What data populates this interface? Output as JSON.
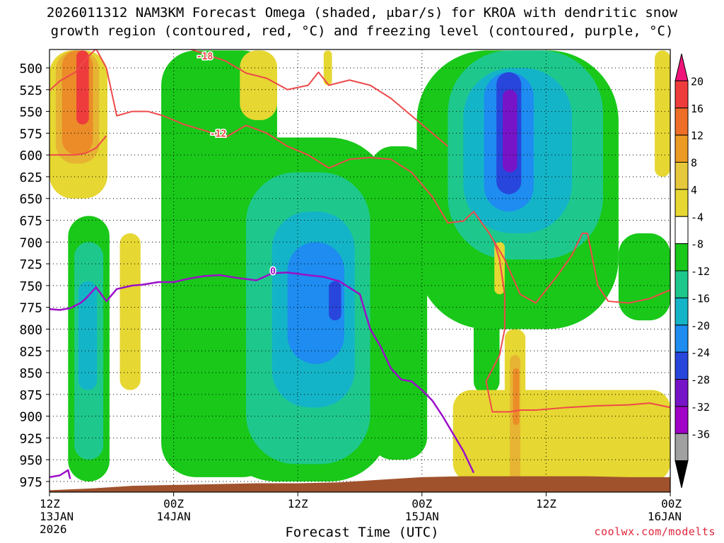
{
  "title": {
    "line1": "2026011312 NAM3KM Forecast Omega (shaded, μbar/s) for KROA with dendritic snow",
    "line2": "growth region (contoured, red, °C) and freezing level (contoured, purple, °C)"
  },
  "xlabel": "Forecast Time (UTC)",
  "credit": "coolwx.com/modelts",
  "chart_data": {
    "type": "heatmap",
    "title": "2026011312 NAM3KM Forecast Omega (shaded, μbar/s) for KROA with dendritic snow growth region (contoured, red, °C) and freezing level (contoured, purple, °C)",
    "xlabel": "Forecast Time (UTC)",
    "ylabel": "",
    "x_unit": "hours since 2026-01-13 12Z",
    "xlim": [
      0,
      60
    ],
    "ylim": [
      990,
      480
    ],
    "y_ticks": [
      500,
      525,
      550,
      575,
      600,
      625,
      650,
      675,
      700,
      725,
      750,
      775,
      800,
      825,
      850,
      875,
      900,
      925,
      950,
      975
    ],
    "x_ticks": [
      {
        "x": 0,
        "lines": [
          "12Z",
          "13JAN",
          "2026"
        ]
      },
      {
        "x": 12,
        "lines": [
          "00Z",
          "14JAN"
        ]
      },
      {
        "x": 24,
        "lines": [
          "12Z",
          ""
        ]
      },
      {
        "x": 36,
        "lines": [
          "00Z",
          "15JAN"
        ]
      },
      {
        "x": 48,
        "lines": [
          "12Z",
          ""
        ]
      },
      {
        "x": 60,
        "lines": [
          "00Z",
          "16JAN"
        ]
      }
    ],
    "grid": true,
    "colorbar": {
      "labels": [
        "20",
        "16",
        "12",
        "8",
        "4",
        "-4",
        "-8",
        "-12",
        "-16",
        "-20",
        "-24",
        "-28",
        "-32",
        "-36"
      ],
      "colors": [
        "#f0147a",
        "#ee3c3c",
        "#ee6e28",
        "#eb9b23",
        "#e6c83c",
        "#e6d732",
        "#ffffff",
        "#19c819",
        "#1ec88c",
        "#14b4c8",
        "#1e8cf0",
        "#2846dc",
        "#7814c8",
        "#a000c8",
        "#a0a0a0",
        "#000000"
      ]
    },
    "omega_colors": {
      "neg4": "#19c819",
      "neg8": "#1ec88c",
      "neg12": "#14b4c8",
      "neg16": "#1e8cf0",
      "neg20": "#2846dc",
      "neg24": "#7814c8",
      "pos4": "#e6d732",
      "pos8": "#e6b432",
      "pos12": "#eb8c28",
      "pos16": "#ee3c3c"
    },
    "omega_features": [
      {
        "level": -4,
        "x": [
          1.8,
          5.8
        ],
        "y": [
          670,
          975
        ],
        "r": 0.5
      },
      {
        "level": -8,
        "x": [
          2.4,
          5.2
        ],
        "y": [
          700,
          950
        ],
        "r": 0.5
      },
      {
        "level": -12,
        "x": [
          2.8,
          4.6
        ],
        "y": [
          745,
          870
        ],
        "r": 0.5
      },
      {
        "level": -4,
        "x": [
          10.8,
          22
        ],
        "y": [
          480,
          970
        ],
        "r": 0.3
      },
      {
        "level": -4,
        "x": [
          16,
          33
        ],
        "y": [
          580,
          975
        ],
        "r": 0.35
      },
      {
        "level": -8,
        "x": [
          19,
          31
        ],
        "y": [
          620,
          955
        ],
        "r": 0.4
      },
      {
        "level": -12,
        "x": [
          21.5,
          29.5
        ],
        "y": [
          665,
          890
        ],
        "r": 0.45
      },
      {
        "level": -16,
        "x": [
          23,
          28.5
        ],
        "y": [
          700,
          840
        ],
        "r": 0.5
      },
      {
        "level": -20,
        "x": [
          27,
          28.2
        ],
        "y": [
          745,
          790
        ],
        "r": 0.5
      },
      {
        "level": -4,
        "x": [
          31,
          36.5
        ],
        "y": [
          590,
          950
        ],
        "r": 0.4
      },
      {
        "level": -4,
        "x": [
          35.5,
          55
        ],
        "y": [
          480,
          800
        ],
        "r": 0.35
      },
      {
        "level": -8,
        "x": [
          38.5,
          53.5
        ],
        "y": [
          480,
          720
        ],
        "r": 0.4
      },
      {
        "level": -12,
        "x": [
          40,
          50.5
        ],
        "y": [
          500,
          690
        ],
        "r": 0.45
      },
      {
        "level": -16,
        "x": [
          42,
          46.8
        ],
        "y": [
          505,
          665
        ],
        "r": 0.5
      },
      {
        "level": -20,
        "x": [
          43.2,
          45.6
        ],
        "y": [
          505,
          645
        ],
        "r": 0.5
      },
      {
        "level": -24,
        "x": [
          43.8,
          45.2
        ],
        "y": [
          525,
          620
        ],
        "r": 0.5
      },
      {
        "level": -4,
        "x": [
          55,
          60
        ],
        "y": [
          690,
          790
        ],
        "r": 0.4
      },
      {
        "level": -4,
        "x": [
          41,
          43.5
        ],
        "y": [
          775,
          875
        ],
        "r": 0.5
      },
      {
        "level": 4,
        "x": [
          0,
          5.6
        ],
        "y": [
          480,
          650
        ],
        "r": 0.4
      },
      {
        "level": 8,
        "x": [
          0.6,
          4.8
        ],
        "y": [
          480,
          610
        ],
        "r": 0.45
      },
      {
        "level": 12,
        "x": [
          1.2,
          4.2
        ],
        "y": [
          480,
          600
        ],
        "r": 0.5
      },
      {
        "level": 16,
        "x": [
          2.6,
          3.8
        ],
        "y": [
          480,
          565
        ],
        "r": 0.5
      },
      {
        "level": 4,
        "x": [
          6.8,
          8.8
        ],
        "y": [
          690,
          870
        ],
        "r": 0.5
      },
      {
        "level": 4,
        "x": [
          18.4,
          22
        ],
        "y": [
          480,
          560
        ],
        "r": 0.45
      },
      {
        "level": 4,
        "x": [
          26.5,
          27.3
        ],
        "y": [
          480,
          520
        ],
        "r": 0.5
      },
      {
        "level": 4,
        "x": [
          39,
          60
        ],
        "y": [
          870,
          975
        ],
        "r": 0.2
      },
      {
        "level": 4,
        "x": [
          44,
          46
        ],
        "y": [
          800,
          975
        ],
        "r": 0.45
      },
      {
        "level": 8,
        "x": [
          44.5,
          45.5
        ],
        "y": [
          830,
          975
        ],
        "r": 0.5
      },
      {
        "level": 12,
        "x": [
          44.8,
          45.4
        ],
        "y": [
          845,
          910
        ],
        "r": 0.5
      },
      {
        "level": 4,
        "x": [
          58.5,
          60
        ],
        "y": [
          480,
          625
        ],
        "r": 0.5
      },
      {
        "level": 4,
        "x": [
          43,
          44
        ],
        "y": [
          700,
          760
        ],
        "r": 0.5
      }
    ],
    "series": [
      {
        "name": "-18",
        "color": "#ee4a4a",
        "width": 2,
        "label_at": [
          15,
          486
        ],
        "x": [
          5.5,
          7,
          9,
          11,
          12,
          13,
          15,
          17,
          19,
          21,
          23,
          25,
          26,
          27,
          29,
          31,
          33,
          35,
          37,
          38.5
        ],
        "y": [
          478,
          470,
          462,
          460,
          466,
          476,
          484,
          492,
          506,
          512,
          525,
          520,
          505,
          520,
          514,
          520,
          535,
          555,
          575,
          590
        ]
      },
      {
        "name": "-12",
        "color": "#ee4a4a",
        "width": 2,
        "label_at": [
          16.3,
          575
        ],
        "x": [
          0,
          1,
          2.5,
          3.5,
          4.5,
          5.5,
          6.5,
          8,
          9.5,
          11,
          13,
          15,
          17,
          19,
          21,
          23,
          25,
          27,
          29,
          31,
          33,
          35,
          37,
          38.5,
          40,
          41,
          42.5,
          44,
          45.5,
          47,
          49,
          50.5,
          51.5,
          52,
          53,
          54,
          56,
          58,
          59,
          60
        ],
        "y": [
          526,
          515,
          505,
          490,
          478,
          500,
          555,
          550,
          550,
          555,
          565,
          572,
          580,
          566,
          575,
          590,
          600,
          615,
          605,
          603,
          605,
          620,
          648,
          678,
          676,
          665,
          690,
          720,
          760,
          770,
          740,
          715,
          690,
          690,
          750,
          768,
          770,
          765,
          760,
          755
        ]
      },
      {
        "name": "-12b",
        "color": "#ee4a4a",
        "width": 2,
        "label_at": null,
        "x": [
          0,
          2.5,
          3.5,
          4.5,
          5.5
        ],
        "y": [
          600,
          600,
          598,
          592,
          578
        ]
      },
      {
        "name": "-12c",
        "color": "#ee4a4a",
        "width": 2,
        "label_at": null,
        "x": [
          43,
          43.5,
          44,
          44,
          43.5,
          42.2,
          42.8,
          44.5,
          45.5,
          47,
          50,
          53,
          56,
          58,
          60
        ],
        "y": [
          700,
          720,
          760,
          800,
          830,
          860,
          895,
          895,
          893,
          893,
          890,
          888,
          887,
          885,
          890
        ]
      },
      {
        "name": "0",
        "color": "#9b0fc8",
        "width": 2.5,
        "label_at": [
          21.6,
          733
        ],
        "x": [
          0,
          1,
          2,
          3,
          3.5,
          4.5,
          5.5,
          6.5,
          8,
          9,
          10.5,
          12,
          13.5,
          15,
          16.5,
          18,
          20,
          21.5,
          23,
          25,
          26.5,
          28,
          30,
          31,
          32,
          33,
          34,
          35,
          36,
          37,
          38,
          39,
          40,
          41
        ],
        "y": [
          777,
          778,
          776,
          770,
          765,
          752,
          768,
          754,
          750,
          749,
          746,
          746,
          742,
          739,
          738,
          741,
          744,
          736,
          735,
          738,
          740,
          745,
          760,
          800,
          820,
          845,
          858,
          860,
          870,
          882,
          900,
          920,
          940,
          965
        ]
      },
      {
        "name": "0b",
        "color": "#9b0fc8",
        "width": 2.5,
        "label_at": null,
        "x": [
          0,
          1,
          1.8,
          2
        ],
        "y": [
          970,
          968,
          962,
          972
        ]
      }
    ],
    "terrain": {
      "color": "#a0522d",
      "x": [
        0,
        4,
        8,
        12,
        16,
        20,
        24,
        28,
        32,
        36,
        40,
        44,
        48,
        52,
        56,
        60
      ],
      "p": [
        985,
        983,
        980,
        979,
        978,
        977,
        977,
        976,
        973,
        970,
        969,
        969,
        969,
        969,
        970,
        970
      ]
    }
  }
}
